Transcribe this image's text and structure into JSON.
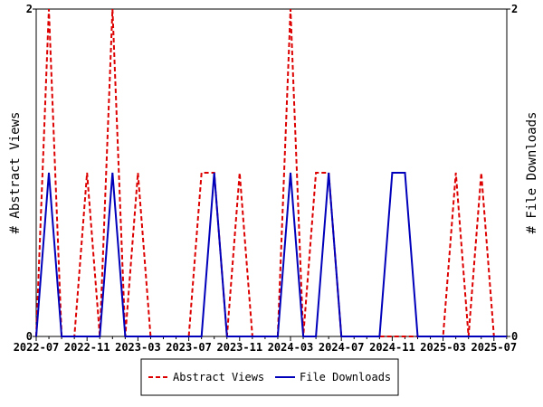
{
  "chart_data": {
    "type": "line",
    "title": "",
    "xlabel": "",
    "ylabel_left": "# Abstract Views",
    "ylabel_right": "# File Downloads",
    "ylim": [
      0,
      2
    ],
    "y_ticks": [
      "0",
      "2"
    ],
    "x": [
      "2022-07",
      "2022-08",
      "2022-09",
      "2022-10",
      "2022-11",
      "2022-12",
      "2023-01",
      "2023-02",
      "2023-03",
      "2023-04",
      "2023-05",
      "2023-06",
      "2023-07",
      "2023-08",
      "2023-09",
      "2023-10",
      "2023-11",
      "2023-12",
      "2024-01",
      "2024-02",
      "2024-03",
      "2024-04",
      "2024-05",
      "2024-06",
      "2024-07",
      "2024-08",
      "2024-09",
      "2024-10",
      "2024-11",
      "2024-12",
      "2025-01",
      "2025-02",
      "2025-03",
      "2025-04",
      "2025-05",
      "2025-06",
      "2025-07",
      "2025-08"
    ],
    "x_ticks": [
      "2022-07",
      "2022-11",
      "2023-03",
      "2023-07",
      "2023-11",
      "2024-03",
      "2024-07",
      "2024-11",
      "2025-03",
      "2025-07"
    ],
    "series": [
      {
        "name": "Abstract Views",
        "color": "#dd0000",
        "style": "dashed",
        "values": [
          0,
          2,
          0,
          0,
          1,
          0,
          2,
          0,
          1,
          0,
          0,
          0,
          0,
          1,
          1,
          0,
          1,
          0,
          0,
          0,
          2,
          0,
          1,
          1,
          0,
          0,
          0,
          0,
          0,
          0,
          0,
          0,
          0,
          1,
          0,
          1,
          0,
          0
        ]
      },
      {
        "name": "File Downloads",
        "color": "#0000bb",
        "style": "solid",
        "values": [
          0,
          1,
          0,
          0,
          0,
          0,
          1,
          0,
          0,
          0,
          0,
          0,
          0,
          0,
          1,
          0,
          0,
          0,
          0,
          0,
          1,
          0,
          0,
          1,
          0,
          0,
          0,
          0,
          1,
          1,
          0,
          0,
          0,
          0,
          0,
          0,
          0,
          0
        ]
      }
    ],
    "legend_position": "bottom-center",
    "grid": false
  }
}
